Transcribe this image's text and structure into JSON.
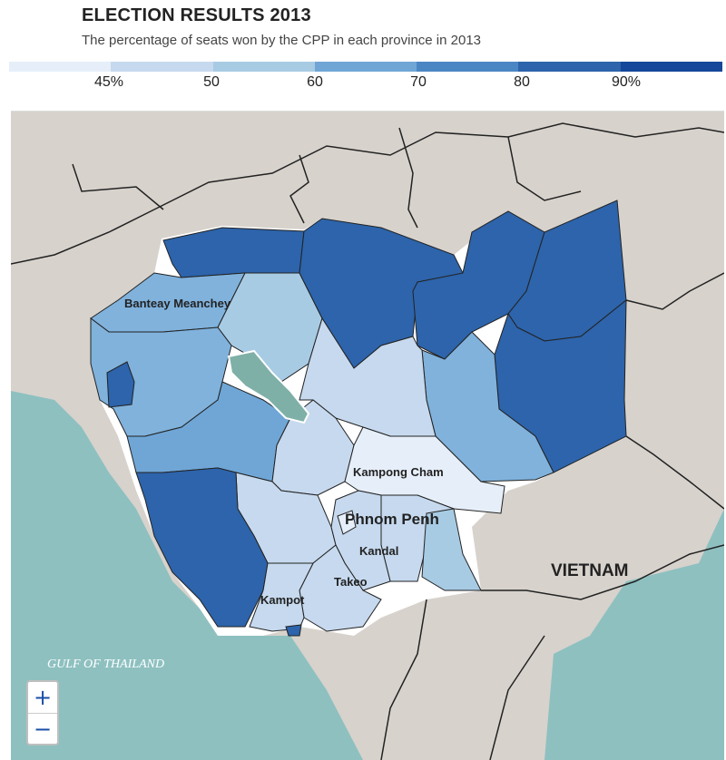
{
  "header": {
    "title": "ELECTION RESULTS 2013",
    "subtitle": "The percentage of seats won by the CPP in each province in 2013"
  },
  "legend": {
    "colors": [
      "#e6eff9",
      "#c6d9ee",
      "#a8cbe4",
      "#6fa6d6",
      "#4b86c4",
      "#2d64ab",
      "#15479a"
    ],
    "ticks": [
      "45%",
      "50",
      "60",
      "70",
      "80",
      "90%"
    ]
  },
  "map": {
    "place_labels": {
      "banteay_meanchey": "Banteay Meanchey",
      "kampong_cham": "Kampong Cham",
      "phnom_penh": "Phnom Penh",
      "kandal": "Kandal",
      "takeo": "Takeo",
      "kampot": "Kampot",
      "vietnam": "VIETNAM",
      "gulf": "GULF OF THAILAND"
    },
    "colors": {
      "sea": "#8ec0c0",
      "land": "#d7d2cc",
      "lake": "#7fb0a8",
      "border": "#222222"
    }
  },
  "zoom": {
    "in_label": "+",
    "out_label": "−"
  }
}
